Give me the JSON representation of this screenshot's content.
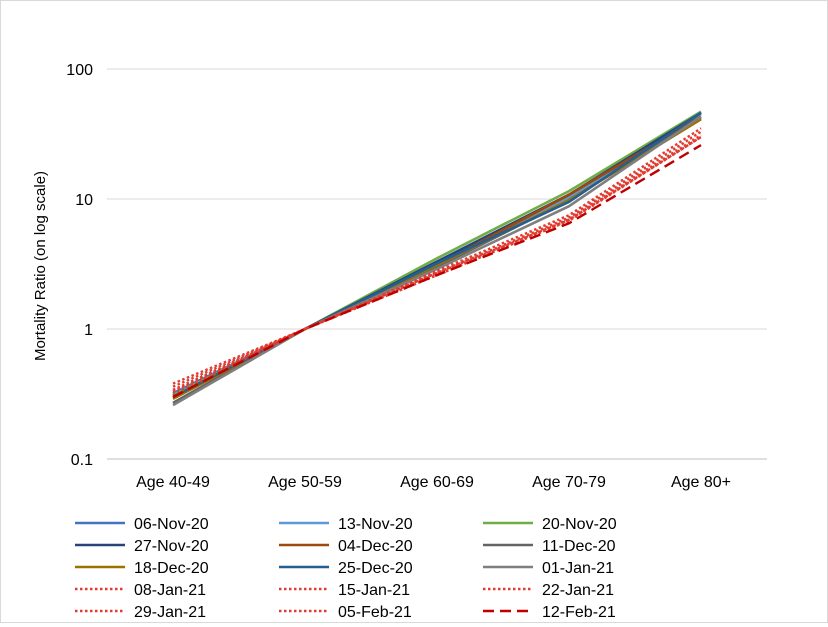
{
  "chart_data": {
    "type": "line",
    "title": "",
    "xlabel": "",
    "ylabel": "Mortality Ratio (on log scale)",
    "yscale": "log",
    "ylim": [
      0.1,
      100
    ],
    "yticks": [
      "0.1",
      "1",
      "10",
      "100"
    ],
    "ytick_values": [
      0.1,
      1,
      10,
      100
    ],
    "grid": "horizontal",
    "legend_position": "bottom",
    "categories": [
      "Age 40-49",
      "Age 50-59",
      "Age 60-69",
      "Age 70-79",
      "Age 80+"
    ],
    "series": [
      {
        "name": "06-Nov-20",
        "color": "#4472c4",
        "dash": "solid",
        "values": [
          0.32,
          1,
          3.3,
          10.5,
          46
        ]
      },
      {
        "name": "13-Nov-20",
        "color": "#5b9bd5",
        "dash": "solid",
        "values": [
          0.31,
          1,
          3.2,
          10.3,
          45
        ]
      },
      {
        "name": "20-Nov-20",
        "color": "#70ad47",
        "dash": "solid",
        "values": [
          0.31,
          1,
          3.5,
          11.5,
          47
        ]
      },
      {
        "name": "27-Nov-20",
        "color": "#264478",
        "dash": "solid",
        "values": [
          0.3,
          1,
          3.3,
          10.8,
          46
        ]
      },
      {
        "name": "04-Dec-20",
        "color": "#9e480e",
        "dash": "solid",
        "values": [
          0.3,
          1,
          3.1,
          10.8,
          43
        ]
      },
      {
        "name": "11-Dec-20",
        "color": "#636363",
        "dash": "solid",
        "values": [
          0.27,
          1,
          3.0,
          9.8,
          42
        ]
      },
      {
        "name": "18-Dec-20",
        "color": "#997300",
        "dash": "solid",
        "values": [
          0.29,
          1,
          3.1,
          9.8,
          41
        ]
      },
      {
        "name": "25-Dec-20",
        "color": "#255e91",
        "dash": "solid",
        "values": [
          0.3,
          1,
          3.2,
          9.5,
          46
        ]
      },
      {
        "name": "01-Jan-21",
        "color": "#7f7f7f",
        "dash": "solid",
        "values": [
          0.26,
          1,
          2.9,
          8.8,
          43
        ]
      },
      {
        "name": "08-Jan-21",
        "color": "#e03c31",
        "dash": "dotted",
        "values": [
          0.34,
          1,
          2.8,
          7.5,
          35
        ]
      },
      {
        "name": "15-Jan-21",
        "color": "#e03c31",
        "dash": "dotted",
        "values": [
          0.36,
          1,
          2.7,
          7.2,
          33
        ]
      },
      {
        "name": "22-Jan-21",
        "color": "#e03c31",
        "dash": "dotted",
        "values": [
          0.38,
          1,
          2.6,
          7.0,
          31
        ]
      },
      {
        "name": "29-Jan-21",
        "color": "#e03c31",
        "dash": "dotted",
        "values": [
          0.33,
          1,
          2.7,
          6.9,
          30
        ]
      },
      {
        "name": "05-Feb-21",
        "color": "#e03c31",
        "dash": "dotted",
        "values": [
          0.31,
          1,
          2.6,
          6.8,
          30
        ]
      },
      {
        "name": "12-Feb-21",
        "color": "#c00000",
        "dash": "dashed",
        "values": [
          0.3,
          1,
          2.6,
          6.5,
          26
        ]
      }
    ]
  }
}
